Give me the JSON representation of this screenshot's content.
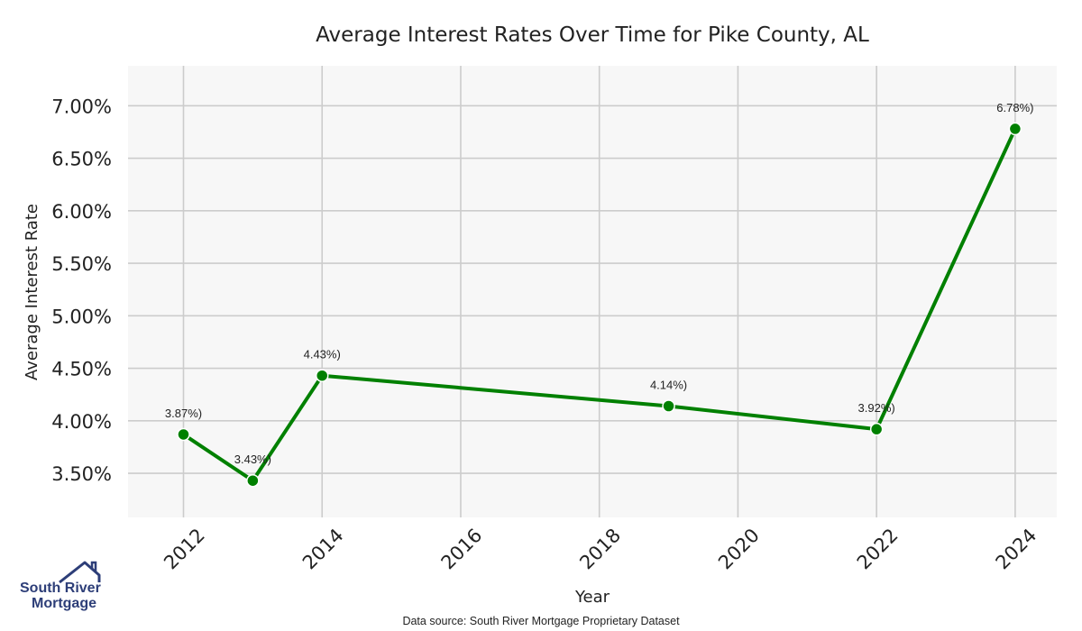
{
  "chart_data": {
    "type": "line",
    "title": "Average Interest Rates Over Time for Pike County, AL",
    "xlabel": "Year",
    "ylabel": "Average Interest Rate",
    "xlim": [
      2011.2,
      2024.6
    ],
    "ylim": [
      3.08,
      7.38
    ],
    "x_ticks": [
      2012,
      2014,
      2016,
      2018,
      2020,
      2022,
      2024
    ],
    "y_ticks": [
      3.5,
      4.0,
      4.5,
      5.0,
      5.5,
      6.0,
      6.5,
      7.0
    ],
    "y_tick_labels": [
      "3.50%",
      "4.00%",
      "4.50%",
      "5.00%",
      "5.50%",
      "6.00%",
      "6.50%",
      "7.00%"
    ],
    "grid": true,
    "series": [
      {
        "name": "Average Interest Rate",
        "color": "#008000",
        "x": [
          2012,
          2013,
          2014,
          2019,
          2022,
          2024
        ],
        "values": [
          3.87,
          3.43,
          4.43,
          4.14,
          3.92,
          6.78
        ],
        "labels": [
          "3.87%)",
          "3.43%)",
          "4.43%)",
          "4.14%)",
          "3.92%)",
          "6.78%)"
        ]
      }
    ]
  },
  "footer": {
    "source": "Data source: South River Mortgage Proprietary Dataset"
  },
  "logo": {
    "line1": "South River",
    "line2": "Mortgage",
    "color": "#2d3e78"
  },
  "colors": {
    "plot_background": "#f7f7f7",
    "grid": "#cccccc",
    "line": "#008000"
  }
}
